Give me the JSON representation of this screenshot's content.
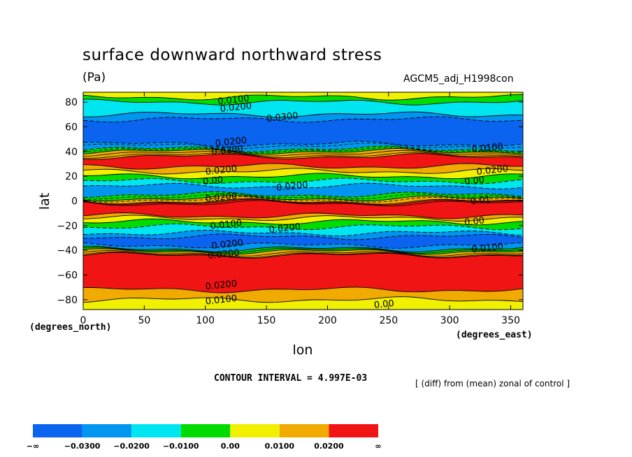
{
  "title": "surface downward northward stress",
  "units": "(Pa)",
  "dataset": "AGCM5_adj_H1998con",
  "contour_interval": "CONTOUR INTERVAL = 4.997E-03",
  "note": "[ (diff) from (mean) zonal of control ]",
  "chart_data": {
    "type": "heatmap",
    "title": "surface downward northward stress",
    "xlabel": "lon",
    "ylabel": "lat",
    "x_unit_label": "(degrees_east)",
    "y_unit_label": "(degrees_north)",
    "xlim": [
      0,
      360
    ],
    "ylim": [
      -88,
      88
    ],
    "x_ticks": [
      0,
      50,
      100,
      150,
      200,
      250,
      300,
      350
    ],
    "y_ticks": [
      80,
      60,
      40,
      20,
      0,
      -20,
      -40,
      -60,
      -80
    ],
    "x_tick_labels": [
      "0",
      "50",
      "100",
      "150",
      "200",
      "250",
      "300",
      "350"
    ],
    "y_tick_labels": [
      "80",
      "60",
      "40",
      "20",
      "0",
      "−20",
      "−40",
      "−60",
      "−80"
    ],
    "colorbar": {
      "colors": [
        "#0a64f0",
        "#0096f0",
        "#00e6f0",
        "#00dc00",
        "#f0f000",
        "#f0aa00",
        "#f01414"
      ],
      "labels": [
        "−∞",
        "−0.0300",
        "−0.0200",
        "−0.0100",
        "0.00",
        "0.0100",
        "0.0200",
        "∞"
      ]
    },
    "bands": [
      {
        "lat": [
          84,
          88
        ],
        "color": "#f0f000"
      },
      {
        "lat": [
          80,
          84
        ],
        "color": "#00dc00"
      },
      {
        "lat": [
          70,
          80
        ],
        "color": "#00e6f0"
      },
      {
        "lat": [
          66,
          70
        ],
        "color": "#0096f0"
      },
      {
        "lat": [
          46,
          66
        ],
        "color": "#0a64f0"
      },
      {
        "lat": [
          42,
          46
        ],
        "color": "#0096f0"
      },
      {
        "lat": [
          40,
          42
        ],
        "color": "#00dc00"
      },
      {
        "lat": [
          36,
          40
        ],
        "color": "#f0aa00"
      },
      {
        "lat": [
          28,
          36
        ],
        "color": "#f01414"
      },
      {
        "lat": [
          24,
          28
        ],
        "color": "#f0aa00"
      },
      {
        "lat": [
          20,
          24
        ],
        "color": "#f0f000"
      },
      {
        "lat": [
          16,
          20
        ],
        "color": "#00dc00"
      },
      {
        "lat": [
          12,
          16
        ],
        "color": "#00e6f0"
      },
      {
        "lat": [
          5,
          12
        ],
        "color": "#0096f0"
      },
      {
        "lat": [
          2,
          5
        ],
        "color": "#00dc00"
      },
      {
        "lat": [
          -1,
          2
        ],
        "color": "#f0aa00"
      },
      {
        "lat": [
          -12,
          -1
        ],
        "color": "#f01414"
      },
      {
        "lat": [
          -14,
          -12
        ],
        "color": "#f0aa00"
      },
      {
        "lat": [
          -17,
          -14
        ],
        "color": "#f0f000"
      },
      {
        "lat": [
          -21,
          -17
        ],
        "color": "#00dc00"
      },
      {
        "lat": [
          -26,
          -21
        ],
        "color": "#00e6f0"
      },
      {
        "lat": [
          -29,
          -26
        ],
        "color": "#0096f0"
      },
      {
        "lat": [
          -36,
          -29
        ],
        "color": "#0a64f0"
      },
      {
        "lat": [
          -39,
          -36
        ],
        "color": "#0096f0"
      },
      {
        "lat": [
          -41,
          -39
        ],
        "color": "#00dc00"
      },
      {
        "lat": [
          -44,
          -41
        ],
        "color": "#f0aa00"
      },
      {
        "lat": [
          -72,
          -44
        ],
        "color": "#f01414"
      },
      {
        "lat": [
          -80,
          -72
        ],
        "color": "#f0aa00"
      },
      {
        "lat": [
          -88,
          -80
        ],
        "color": "#f0f000"
      }
    ],
    "contour_labels": [
      {
        "text": "0.0100",
        "lon": 110,
        "lat": 81
      },
      {
        "text": "0.0200",
        "lon": 112,
        "lat": 75
      },
      {
        "text": "0.0300",
        "lon": 150,
        "lat": 67
      },
      {
        "text": "0.0200",
        "lon": 108,
        "lat": 47
      },
      {
        "text": "0.0200",
        "lon": 105,
        "lat": 40
      },
      {
        "text": "0.0100",
        "lon": 318,
        "lat": 42
      },
      {
        "text": "0.0200",
        "lon": 100,
        "lat": 24
      },
      {
        "text": "0.00",
        "lon": 98,
        "lat": 16
      },
      {
        "text": "0.0200",
        "lon": 158,
        "lat": 11
      },
      {
        "text": "0.0200",
        "lon": 322,
        "lat": 24
      },
      {
        "text": "0.00",
        "lon": 312,
        "lat": 16
      },
      {
        "text": "0.01",
        "lon": 317,
        "lat": 0
      },
      {
        "text": "0.0200",
        "lon": 100,
        "lat": 2
      },
      {
        "text": "0.0100",
        "lon": 104,
        "lat": -20
      },
      {
        "text": "0.0200",
        "lon": 152,
        "lat": -23
      },
      {
        "text": "0.00",
        "lon": 312,
        "lat": -17
      },
      {
        "text": "0.0200",
        "lon": 105,
        "lat": -36
      },
      {
        "text": "0.0200",
        "lon": 102,
        "lat": -44
      },
      {
        "text": "0.0100",
        "lon": 318,
        "lat": -39
      },
      {
        "text": "0.0200",
        "lon": 100,
        "lat": -69
      },
      {
        "text": "0.0100",
        "lon": 100,
        "lat": -81
      },
      {
        "text": "0.00",
        "lon": 238,
        "lat": -84
      }
    ]
  }
}
